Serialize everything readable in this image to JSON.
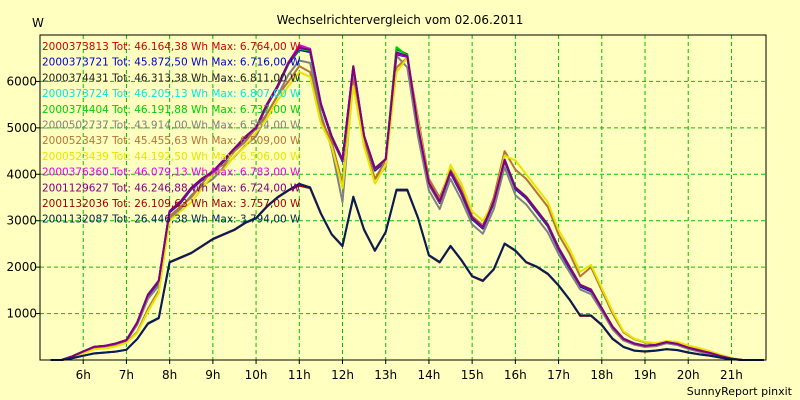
{
  "chart_data": {
    "type": "line",
    "title": "Wechselrichtervergleich vom 02.06.2011",
    "ylabel": "W",
    "xlabel": "",
    "xlim": [
      5.0,
      21.8
    ],
    "ylim": [
      0,
      7000
    ],
    "grid": true,
    "legend_position": "top-left",
    "x_ticks": [
      6,
      7,
      8,
      9,
      10,
      11,
      12,
      13,
      14,
      15,
      16,
      17,
      18,
      19,
      20,
      21
    ],
    "x_tick_labels": [
      "6h",
      "7h",
      "8h",
      "9h",
      "10h",
      "11h",
      "12h",
      "13h",
      "14h",
      "15h",
      "16h",
      "17h",
      "18h",
      "19h",
      "20h",
      "21h"
    ],
    "y_ticks": [
      1000,
      2000,
      3000,
      4000,
      5000,
      6000
    ],
    "y_tick_labels": [
      "1000",
      "2000",
      "3000",
      "4000",
      "5000",
      "6000"
    ],
    "footer": "SunnyReport pinxit",
    "x": [
      5.25,
      5.5,
      5.75,
      6.0,
      6.25,
      6.5,
      6.75,
      7.0,
      7.25,
      7.5,
      7.75,
      8.0,
      8.25,
      8.5,
      8.75,
      9.0,
      9.25,
      9.5,
      9.75,
      10.0,
      10.25,
      10.5,
      10.75,
      11.0,
      11.25,
      11.5,
      11.75,
      12.0,
      12.25,
      12.5,
      12.75,
      13.0,
      13.25,
      13.5,
      13.75,
      14.0,
      14.25,
      14.5,
      14.75,
      15.0,
      15.25,
      15.5,
      15.75,
      16.0,
      16.25,
      16.5,
      16.75,
      17.0,
      17.25,
      17.5,
      17.75,
      18.0,
      18.25,
      18.5,
      18.75,
      19.0,
      19.25,
      19.5,
      19.75,
      20.0,
      20.25,
      20.5,
      20.75,
      21.0,
      21.25,
      21.5,
      21.75
    ],
    "series": [
      {
        "name": "2000373813 Tot: 46.164,38 Wh Max: 6.764,00 W",
        "color": "#cc0000",
        "values": [
          0,
          0,
          80,
          180,
          280,
          300,
          350,
          420,
          800,
          1400,
          1700,
          3200,
          3400,
          3700,
          3900,
          4050,
          4300,
          4550,
          4800,
          5000,
          5500,
          5900,
          6400,
          6700,
          6650,
          5500,
          4800,
          4300,
          6300,
          4800,
          4100,
          4300,
          6600,
          6550,
          5000,
          3800,
          3400,
          4050,
          3600,
          3050,
          2850,
          3400,
          4300,
          3700,
          3500,
          3200,
          2900,
          2400,
          2000,
          1600,
          1500,
          1100,
          700,
          450,
          350,
          300,
          320,
          380,
          340,
          260,
          200,
          150,
          80,
          30,
          0,
          0,
          0
        ]
      },
      {
        "name": "2000373721 Tot: 45.872,50 Wh Max: 6.716,00 W",
        "color": "#0000cc",
        "values": [
          0,
          0,
          80,
          180,
          270,
          290,
          340,
          410,
          790,
          1380,
          1680,
          3180,
          3380,
          3680,
          3880,
          4030,
          4280,
          4530,
          4780,
          4980,
          5480,
          5880,
          6380,
          6680,
          6630,
          5480,
          4780,
          4280,
          6280,
          4780,
          4080,
          4280,
          6580,
          6530,
          4980,
          3780,
          3380,
          4030,
          3580,
          3030,
          2830,
          3380,
          4280,
          3680,
          3480,
          3180,
          2880,
          2380,
          1980,
          1580,
          1480,
          1080,
          680,
          440,
          340,
          290,
          310,
          370,
          330,
          250,
          190,
          140,
          75,
          25,
          0,
          0,
          0
        ]
      },
      {
        "name": "2000374431 Tot: 46.313,38 Wh Max: 6.811,00 W",
        "color": "#222222",
        "values": [
          0,
          0,
          80,
          185,
          285,
          305,
          355,
          430,
          810,
          1410,
          1710,
          3210,
          3410,
          3710,
          3910,
          4060,
          4310,
          4560,
          4810,
          5010,
          5510,
          5910,
          6410,
          6750,
          6700,
          5520,
          4820,
          4320,
          6330,
          4830,
          4130,
          4330,
          6700,
          6580,
          5020,
          3820,
          3420,
          4070,
          3620,
          3070,
          2870,
          3420,
          4320,
          3720,
          3520,
          3220,
          2920,
          2420,
          2020,
          1620,
          1520,
          1120,
          720,
          460,
          360,
          310,
          330,
          390,
          350,
          270,
          210,
          160,
          85,
          30,
          0,
          0,
          0
        ]
      },
      {
        "name": "2000373724 Tot: 46.205,13 Wh Max: 6.807,00 W",
        "color": "#00e5e5",
        "values": [
          0,
          0,
          80,
          182,
          282,
          302,
          352,
          425,
          805,
          1405,
          1705,
          3205,
          3405,
          3705,
          3905,
          4055,
          4305,
          4555,
          4805,
          5005,
          5505,
          5905,
          6405,
          6720,
          6680,
          5510,
          4810,
          4310,
          6320,
          4820,
          4120,
          4320,
          6650,
          6560,
          5010,
          3810,
          3410,
          4060,
          3610,
          3060,
          2860,
          3410,
          4310,
          3710,
          3510,
          3210,
          2910,
          2410,
          2010,
          1610,
          1510,
          1110,
          710,
          455,
          355,
          305,
          325,
          385,
          345,
          265,
          205,
          155,
          82,
          30,
          0,
          0,
          0
        ]
      },
      {
        "name": "2000374404 Tot: 46.191,88 Wh Max: 6.737,00 W",
        "color": "#00cc00",
        "values": [
          0,
          0,
          80,
          181,
          281,
          301,
          351,
          423,
          803,
          1403,
          1703,
          3203,
          3403,
          3703,
          3903,
          4053,
          4303,
          4553,
          4803,
          5003,
          5503,
          5903,
          6403,
          6700,
          6660,
          5505,
          4805,
          4305,
          6310,
          4810,
          4110,
          4310,
          6737,
          6550,
          5005,
          3805,
          3405,
          4055,
          3605,
          3055,
          2855,
          3405,
          4305,
          3705,
          3505,
          3205,
          2905,
          2405,
          2005,
          1605,
          1505,
          1105,
          705,
          452,
          352,
          302,
          322,
          382,
          342,
          262,
          202,
          152,
          81,
          30,
          0,
          0,
          0
        ]
      },
      {
        "name": "2000502737 Tot: 43.914,00 Wh Max: 6.554,00 W",
        "color": "#808080",
        "values": [
          0,
          0,
          75,
          170,
          260,
          280,
          330,
          400,
          760,
          1320,
          1600,
          3050,
          3250,
          3550,
          3750,
          3900,
          4150,
          4380,
          4620,
          4820,
          5300,
          5700,
          6150,
          6450,
          6400,
          5300,
          4550,
          3400,
          6100,
          4600,
          3900,
          4150,
          6554,
          6300,
          4800,
          3650,
          3250,
          3900,
          3450,
          2920,
          2720,
          3250,
          4150,
          3550,
          3350,
          3050,
          2750,
          2280,
          1900,
          1520,
          1420,
          1050,
          660,
          420,
          330,
          280,
          300,
          360,
          320,
          240,
          180,
          130,
          70,
          25,
          0,
          0,
          0
        ]
      },
      {
        "name": "2000523437 Tot: 45.455,63 Wh Max: 6.509,00 W",
        "color": "#b87333",
        "values": [
          0,
          0,
          70,
          150,
          240,
          260,
          300,
          380,
          600,
          1100,
          1500,
          3100,
          3300,
          3500,
          3800,
          4100,
          4200,
          4500,
          4700,
          5000,
          5300,
          5700,
          6000,
          6330,
          6200,
          5200,
          4700,
          3800,
          6000,
          4700,
          3900,
          4300,
          6300,
          6509,
          5200,
          3900,
          3500,
          4100,
          3700,
          3100,
          2900,
          3500,
          4500,
          4100,
          3900,
          3600,
          3300,
          2700,
          2300,
          1800,
          2000,
          1500,
          1000,
          600,
          450,
          380,
          350,
          400,
          380,
          300,
          250,
          180,
          110,
          40,
          0,
          0,
          0
        ]
      },
      {
        "name": "2000523439 Tot: 44.192,50 Wh Max: 6.506,00 W",
        "color": "#e5e500",
        "values": [
          0,
          0,
          65,
          140,
          230,
          250,
          290,
          370,
          580,
          1050,
          1450,
          3000,
          3200,
          3400,
          3700,
          4000,
          4100,
          4400,
          4600,
          4900,
          5200,
          5600,
          5900,
          6200,
          6100,
          5100,
          4600,
          3700,
          5900,
          4600,
          3800,
          4200,
          6200,
          6506,
          5100,
          3800,
          3400,
          4200,
          3800,
          3200,
          3000,
          3400,
          4400,
          4300,
          4000,
          3700,
          3400,
          2800,
          2400,
          1900,
          2050,
          1550,
          1050,
          620,
          460,
          390,
          360,
          410,
          390,
          310,
          260,
          190,
          115,
          45,
          0,
          0,
          0
        ]
      },
      {
        "name": "2000376360 Tot: 46.079,13 Wh Max: 6.783,00 W",
        "color": "#e500e5",
        "values": [
          0,
          0,
          80,
          182,
          282,
          302,
          352,
          425,
          805,
          1405,
          1705,
          3205,
          3405,
          3705,
          3905,
          4055,
          4305,
          4555,
          4805,
          5005,
          5505,
          5905,
          6405,
          6783,
          6700,
          5510,
          4810,
          4310,
          6320,
          4820,
          4120,
          4320,
          6600,
          6540,
          5010,
          3810,
          3410,
          4060,
          3610,
          3060,
          2860,
          3410,
          4310,
          3710,
          3510,
          3210,
          2910,
          2410,
          2010,
          1610,
          1510,
          1110,
          710,
          455,
          355,
          305,
          325,
          385,
          345,
          265,
          205,
          155,
          82,
          30,
          0,
          0,
          0
        ]
      },
      {
        "name": "2001129627 Tot: 46.246,88 Wh Max: 6.724,00 W",
        "color": "#800080",
        "values": [
          0,
          0,
          80,
          183,
          283,
          303,
          353,
          427,
          807,
          1407,
          1707,
          3207,
          3407,
          3707,
          3907,
          4057,
          4307,
          4557,
          4807,
          5007,
          5507,
          5907,
          6407,
          6724,
          6680,
          5512,
          4812,
          4312,
          6322,
          4822,
          4122,
          4322,
          6620,
          6545,
          5012,
          3812,
          3412,
          4062,
          3612,
          3062,
          2862,
          3412,
          4312,
          3712,
          3512,
          3212,
          2912,
          2412,
          2012,
          1612,
          1512,
          1112,
          712,
          456,
          356,
          306,
          326,
          386,
          346,
          266,
          206,
          156,
          83,
          30,
          0,
          0,
          0
        ]
      },
      {
        "name": "2001132036 Tot: 26.109,63 Wh Max: 3.757,00 W",
        "color": "#990000",
        "values": [
          0,
          0,
          40,
          90,
          140,
          160,
          180,
          220,
          450,
          780,
          900,
          2100,
          2200,
          2300,
          2450,
          2600,
          2700,
          2800,
          2950,
          3050,
          3300,
          3500,
          3650,
          3757,
          3700,
          3150,
          2700,
          2450,
          3500,
          2800,
          2350,
          2750,
          3650,
          3650,
          3050,
          2250,
          2100,
          2450,
          2150,
          1800,
          1700,
          1950,
          2500,
          2350,
          2100,
          2000,
          1850,
          1600,
          1300,
          950,
          950,
          750,
          450,
          280,
          200,
          180,
          200,
          230,
          210,
          160,
          120,
          90,
          50,
          20,
          0,
          0,
          0
        ]
      },
      {
        "name": "2001132087 Tot: 26.446,38 Wh Max: 3.794,00 W",
        "color": "#00205b",
        "values": [
          0,
          0,
          40,
          92,
          142,
          162,
          182,
          222,
          455,
          790,
          910,
          2110,
          2210,
          2310,
          2460,
          2610,
          2710,
          2810,
          2960,
          3060,
          3310,
          3510,
          3660,
          3794,
          3720,
          3160,
          2710,
          2460,
          3520,
          2810,
          2360,
          2760,
          3670,
          3670,
          3060,
          2260,
          2110,
          2460,
          2160,
          1810,
          1710,
          1960,
          2510,
          2360,
          2110,
          2010,
          1860,
          1610,
          1310,
          960,
          960,
          760,
          460,
          285,
          205,
          185,
          205,
          235,
          215,
          165,
          125,
          95,
          52,
          20,
          0,
          0,
          0
        ]
      }
    ]
  }
}
